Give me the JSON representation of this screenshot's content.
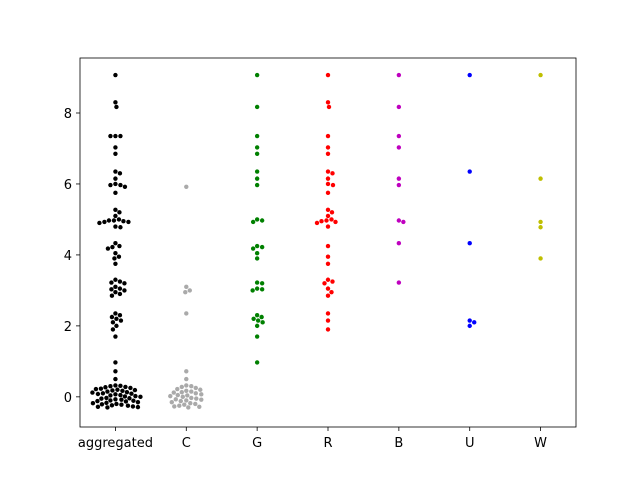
{
  "chart_data": {
    "type": "swarm",
    "ylim": [
      -0.85,
      9.55
    ],
    "yticks": [
      0,
      2,
      4,
      6,
      8
    ],
    "series": [
      {
        "name": "aggregated",
        "color": "#000000",
        "values": [
          9.07,
          8.3,
          8.17,
          7.35,
          7.35,
          7.35,
          7.03,
          6.85,
          6.35,
          6.3,
          6.15,
          6.0,
          5.97,
          5.97,
          5.92,
          5.75,
          5.27,
          5.2,
          5.1,
          5.0,
          4.97,
          4.95,
          4.93,
          4.9,
          4.8,
          4.97,
          4.93,
          4.78,
          4.33,
          4.25,
          4.22,
          4.18,
          4.05,
          3.95,
          3.9,
          3.75,
          3.3,
          3.25,
          3.22,
          3.2,
          3.1,
          3.05,
          3.03,
          3.0,
          2.95,
          2.9,
          2.85,
          2.35,
          2.3,
          2.25,
          2.2,
          2.15,
          2.1,
          2.0,
          1.9,
          1.7,
          0.97,
          0.72,
          0.5,
          -0.3,
          -0.28,
          -0.25,
          -0.22,
          -0.2,
          -0.18,
          -0.15,
          -0.12,
          -0.1,
          -0.08,
          -0.05,
          -0.03,
          0,
          0.02,
          0.05,
          0.07,
          0.1,
          0.12,
          0.15,
          0.17,
          0.2,
          0.22,
          0.25,
          0.28,
          0.3,
          0.32,
          -0.27,
          0.13,
          -0.07,
          0.04,
          -0.29,
          -0.24,
          -0.17,
          -0.13,
          -0.04,
          0.01,
          0.08,
          0.18,
          0.23,
          0.31,
          -0.21,
          -0.11,
          0.09,
          0.19,
          0.27
        ]
      },
      {
        "name": "C",
        "color": "#aaaaaa",
        "values": [
          5.92,
          3.1,
          3.0,
          2.95,
          2.35,
          0.72,
          0.5,
          -0.3,
          -0.28,
          -0.25,
          -0.22,
          -0.2,
          -0.18,
          -0.15,
          -0.12,
          -0.1,
          -0.08,
          -0.05,
          -0.03,
          0,
          0.02,
          0.05,
          0.07,
          0.1,
          0.12,
          0.15,
          0.17,
          0.2,
          0.22,
          0.25,
          0.28,
          0.3,
          0.32,
          -0.27,
          0.13,
          -0.07,
          0.04
        ]
      },
      {
        "name": "G",
        "color": "#008000",
        "values": [
          9.07,
          8.17,
          7.35,
          7.03,
          6.85,
          6.35,
          6.15,
          5.97,
          4.97,
          5.0,
          4.93,
          4.25,
          4.22,
          4.18,
          4.05,
          3.9,
          3.22,
          3.2,
          3.05,
          3.03,
          3.0,
          2.3,
          2.25,
          2.2,
          2.15,
          2.1,
          2.0,
          1.7,
          0.97
        ]
      },
      {
        "name": "R",
        "color": "#ff0000",
        "values": [
          9.07,
          8.3,
          8.17,
          7.35,
          7.03,
          6.85,
          6.35,
          6.3,
          6.15,
          6.0,
          5.97,
          5.75,
          5.27,
          5.2,
          5.1,
          5.0,
          4.97,
          4.95,
          4.93,
          4.9,
          4.8,
          4.25,
          3.95,
          3.75,
          3.3,
          3.25,
          3.2,
          3.05,
          2.95,
          2.85,
          2.35,
          2.15,
          1.9
        ]
      },
      {
        "name": "B",
        "color": "#bf00bf",
        "values": [
          9.07,
          8.17,
          7.35,
          7.03,
          6.15,
          5.97,
          4.97,
          4.93,
          4.33,
          3.22
        ]
      },
      {
        "name": "U",
        "color": "#0000ff",
        "values": [
          9.07,
          6.35,
          4.33,
          2.15,
          2.1,
          2.0
        ]
      },
      {
        "name": "W",
        "color": "#bfbf00",
        "values": [
          9.07,
          6.15,
          4.93,
          4.78,
          3.9
        ]
      }
    ]
  }
}
